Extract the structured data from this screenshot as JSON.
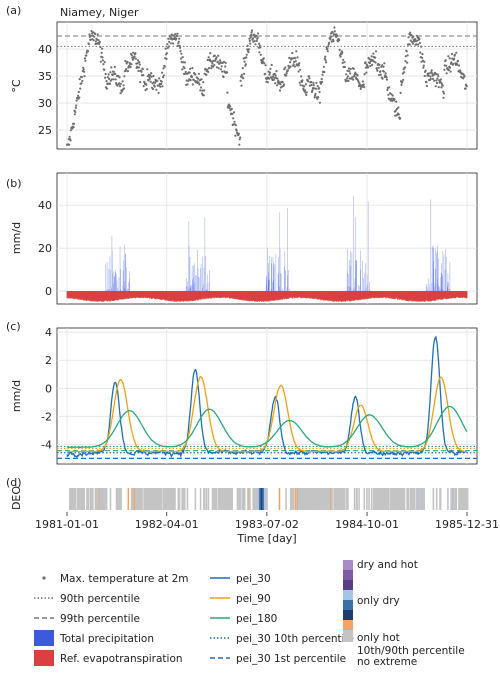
{
  "chart_data": [
    {
      "panel": "(a)",
      "type": "scatter",
      "title": "Niamey, Niger",
      "ylabel": "°C",
      "ylim": [
        21.5,
        45
      ],
      "yticks": [
        25,
        30,
        35,
        40
      ],
      "x_range": [
        "1981-01-01",
        "1985-12-31"
      ],
      "series": [
        {
          "name": "Max. temperature at 2m",
          "color": "#6e6e6e"
        }
      ],
      "thresholds": [
        {
          "name": "90th percentile",
          "value": 40.5,
          "style": "dotted"
        },
        {
          "name": "99th percentile",
          "value": 42.4,
          "style": "dashed"
        }
      ],
      "grid": true
    },
    {
      "panel": "(b)",
      "type": "bar",
      "ylabel": "mm/d",
      "ylim": [
        -6,
        55
      ],
      "yticks": [
        0,
        20,
        40
      ],
      "series": [
        {
          "name": "Total precipitation",
          "color": "#3b5bdb"
        },
        {
          "name": "Ref. evapotranspiration",
          "color": "#d94040"
        }
      ],
      "grid": true
    },
    {
      "panel": "(c)",
      "type": "line",
      "ylabel": "mm/d",
      "ylim": [
        -5.4,
        4.3
      ],
      "yticks": [
        -4,
        -2,
        0,
        2,
        4
      ],
      "series": [
        {
          "name": "pei_30",
          "color": "#1f6fb2"
        },
        {
          "name": "pei_90",
          "color": "#e8a317"
        },
        {
          "name": "pei_180",
          "color": "#2aa876"
        }
      ],
      "thresholds": [
        {
          "name": "pei_30 10th percentile",
          "value": -4.6,
          "style": "dotted",
          "color": "#1f6fb2"
        },
        {
          "name": "pei_30 1st percentile",
          "value": -5.0,
          "style": "dashed",
          "color": "#1f6fb2"
        },
        {
          "value": -4.15,
          "style": "dotted",
          "color": "#2aa876"
        },
        {
          "value": -4.3,
          "style": "dotted",
          "color": "#e8a317"
        },
        {
          "value": -4.45,
          "style": "dashed",
          "color": "#2aa876"
        }
      ],
      "grid": true
    },
    {
      "panel": "(d)",
      "type": "heatmap",
      "ylabel": "DEO",
      "xlabel": "Time [day]",
      "xticks": [
        "1981-01-01",
        "1982-04-01",
        "1983-07-02",
        "1984-10-01",
        "1985-12-31"
      ],
      "categories": [
        "dry and hot",
        "only dry",
        "only hot",
        "10th/90th percentile",
        "no extreme"
      ]
    }
  ],
  "legend": {
    "col1": [
      {
        "label": "Max. temperature at 2m",
        "kind": "dot",
        "color": "#6e6e6e"
      },
      {
        "label": "90th percentile",
        "kind": "dotted",
        "color": "#777777"
      },
      {
        "label": "99th percentile",
        "kind": "dashed",
        "color": "#777777"
      },
      {
        "label": "Total precipitation",
        "kind": "box",
        "color": "#3b5bdb"
      },
      {
        "label": "Ref. evapotranspiration",
        "kind": "box",
        "color": "#d94040"
      }
    ],
    "col2": [
      {
        "label": "pei_30",
        "kind": "line",
        "color": "#1f6fb2"
      },
      {
        "label": "pei_90",
        "kind": "line",
        "color": "#e8a317"
      },
      {
        "label": "pei_180",
        "kind": "line",
        "color": "#2aa876"
      },
      {
        "label": "pei_30 10th percentile",
        "kind": "dotted",
        "color": "#1f6fb2"
      },
      {
        "label": "pei_30 1st percentile",
        "kind": "dashed",
        "color": "#1f6fb2"
      }
    ],
    "col3_labels": [
      "dry and hot",
      "only dry",
      "only hot",
      "10th/90th percentile",
      "no extreme"
    ],
    "col3_colors": {
      "dry_and_hot": [
        "#a98bc6",
        "#7d5ba6",
        "#5a3d86"
      ],
      "only_dry": [
        "#a6c4e6",
        "#3c6ea8",
        "#1a3d6e"
      ],
      "only_hot": "#f4a460",
      "no_extreme": "#c4c4c4"
    }
  }
}
